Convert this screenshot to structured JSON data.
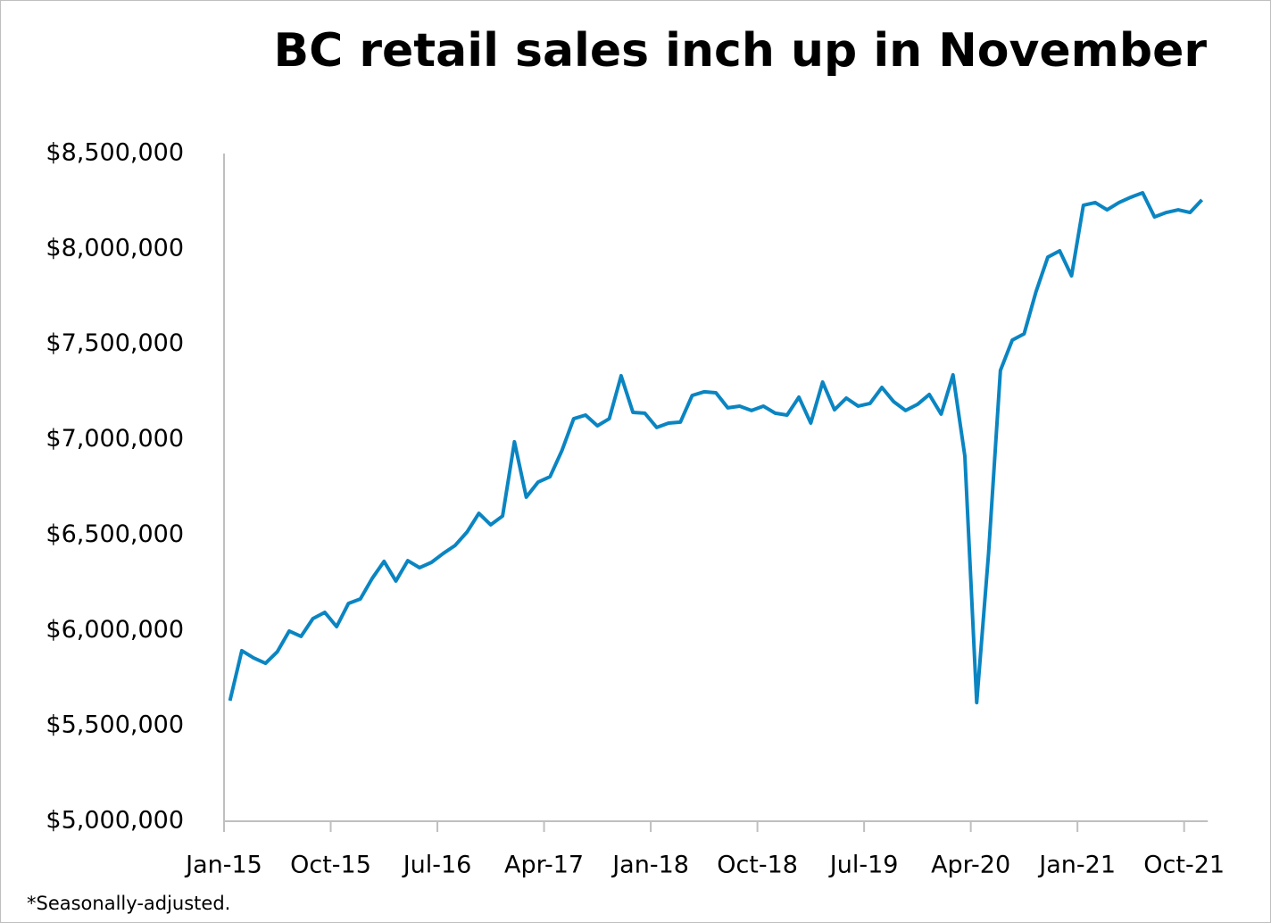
{
  "chart_data": {
    "type": "line",
    "title": "BC retail sales inch up in November",
    "note": "*Seasonally-adjusted.",
    "categories": [
      "Jan-15",
      null,
      null,
      null,
      null,
      null,
      null,
      null,
      null,
      "Oct-15",
      null,
      null,
      null,
      null,
      null,
      null,
      null,
      null,
      "Jul-16",
      null,
      null,
      null,
      null,
      null,
      null,
      null,
      null,
      "Apr-17",
      null,
      null,
      null,
      null,
      null,
      null,
      null,
      null,
      "Jan-18",
      null,
      null,
      null,
      null,
      null,
      null,
      null,
      null,
      "Oct-18",
      null,
      null,
      null,
      null,
      null,
      null,
      null,
      null,
      "Jul-19",
      null,
      null,
      null,
      null,
      null,
      null,
      null,
      null,
      "Apr-20",
      null,
      null,
      null,
      null,
      null,
      null,
      null,
      null,
      "Jan-21",
      null,
      null,
      null,
      null,
      null,
      null,
      null,
      null,
      "Oct-21",
      null
    ],
    "values": [
      5632000,
      5894000,
      5856000,
      5828000,
      5889000,
      5997000,
      5969000,
      6062000,
      6095000,
      6020000,
      6142000,
      6165000,
      6273000,
      6362000,
      6259000,
      6366000,
      6329000,
      6357000,
      6404000,
      6446000,
      6516000,
      6614000,
      6554000,
      6600000,
      6989000,
      6699000,
      6778000,
      6806000,
      6942000,
      7110000,
      7129000,
      7073000,
      7110000,
      7335000,
      7143000,
      7139000,
      7064000,
      7087000,
      7092000,
      7232000,
      7251000,
      7246000,
      7167000,
      7176000,
      7153000,
      7176000,
      7139000,
      7129000,
      7223000,
      7087000,
      7302000,
      7157000,
      7218000,
      7176000,
      7190000,
      7274000,
      7199000,
      7153000,
      7185000,
      7237000,
      7134000,
      7340000,
      6914000,
      5622000,
      6404000,
      7363000,
      7522000,
      7555000,
      7775000,
      7957000,
      7990000,
      7859000,
      8229000,
      8243000,
      8205000,
      8243000,
      8271000,
      8294000,
      8168000,
      8191000,
      8205000,
      8191000,
      8257000
    ],
    "color": "#0a85c2",
    "ylim": [
      5000000,
      8500000
    ],
    "yticks": [
      {
        "value": 5000000,
        "label": "$5,000,000"
      },
      {
        "value": 5500000,
        "label": "$5,500,000"
      },
      {
        "value": 6000000,
        "label": "$6,000,000"
      },
      {
        "value": 6500000,
        "label": "$6,500,000"
      },
      {
        "value": 7000000,
        "label": "$7,000,000"
      },
      {
        "value": 7500000,
        "label": "$7,500,000"
      },
      {
        "value": 8000000,
        "label": "$8,000,000"
      },
      {
        "value": 8500000,
        "label": "$8,500,000"
      }
    ],
    "grid": false
  }
}
